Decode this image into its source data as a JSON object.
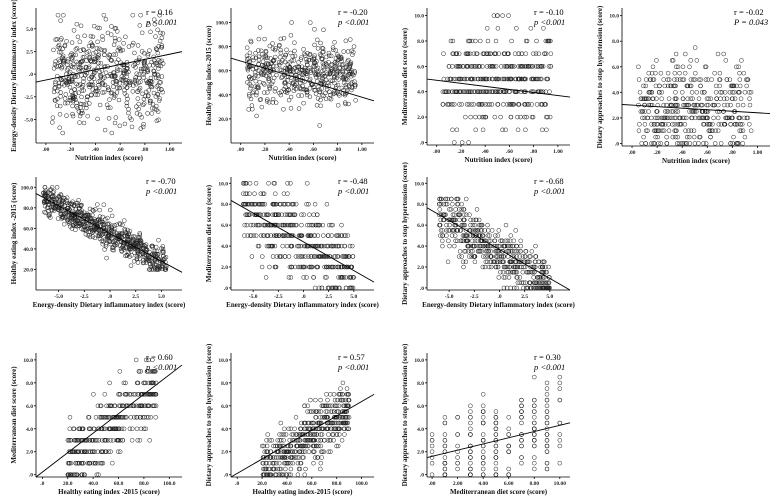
{
  "chart_data": [
    {
      "type": "scatter",
      "xlabel": "Nutrition index (score)",
      "ylabel": "Energy-density Dietary inflammatory index (score)",
      "x_ticks": [
        ".00",
        ".20",
        ".40",
        ".60",
        ".80",
        "1.00"
      ],
      "y_ticks": [
        "-5.0",
        "-2.5",
        ".0",
        "2.5",
        "5.0"
      ],
      "xlim": [
        -0.08,
        1.1
      ],
      "ylim": [
        -7.6,
        7.3
      ],
      "x_range": [
        0.05,
        0.95
      ],
      "y_range": [
        -6.5,
        6.5
      ],
      "y_mid": -0.1,
      "y_spread": 2.6,
      "slope": 2.85,
      "intercept": -0.65,
      "n": 560,
      "stat_r": "r = 0.16",
      "stat_p": "p <0.001"
    },
    {
      "type": "scatter",
      "xlabel": "Nutrition index (score)",
      "ylabel": "Healthy eating index-2015 (score)",
      "x_ticks": [
        ".00",
        ".20",
        ".40",
        ".60",
        ".80",
        "1.00"
      ],
      "y_ticks": [
        "20.0",
        "40.0",
        "60.0",
        "80.0",
        "100.0"
      ],
      "xlim": [
        -0.08,
        1.1
      ],
      "ylim": [
        0,
        112
      ],
      "x_range": [
        0.05,
        0.95
      ],
      "y_range": [
        10,
        100
      ],
      "y_mid": 58,
      "y_spread": 13,
      "slope": -30,
      "intercept": 68,
      "n": 520,
      "stat_r": "r = -0.20",
      "stat_p": "p <0.001"
    },
    {
      "type": "scatter",
      "xlabel": "Nutrition index (score)",
      "ylabel": "Mediterranean diet score (score)",
      "x_ticks": [
        ".00",
        ".20",
        ".40",
        ".60",
        ".80",
        "1.00"
      ],
      "y_ticks": [
        ".0",
        "2.0",
        "4.0",
        "6.0",
        "8.0",
        "10.0"
      ],
      "xlim": [
        -0.08,
        1.1
      ],
      "ylim": [
        -0.2,
        10.6
      ],
      "x_range": [
        0.05,
        0.95
      ],
      "y_range": [
        0,
        10
      ],
      "y_mid": 4.8,
      "y_spread": 1.9,
      "y_step": 1,
      "slope": -1.2,
      "intercept": 4.9,
      "n": 420,
      "stat_r": "r = -0.10",
      "stat_p": "p <0.001"
    },
    {
      "type": "scatter",
      "xlabel": "Nutrition index (score)",
      "ylabel": "Dietary approaches to stop hypertension (score)",
      "x_ticks": [
        ".00",
        ".20",
        ".40",
        ".60",
        ".80",
        "1.00"
      ],
      "y_ticks": [
        ".0",
        "2.0",
        "4.0",
        "6.0",
        "8.0",
        "10.0"
      ],
      "xlim": [
        -0.08,
        1.1
      ],
      "ylim": [
        -0.2,
        10.6
      ],
      "x_range": [
        0.05,
        0.95
      ],
      "y_range": [
        0,
        8.5
      ],
      "y_mid": 3.0,
      "y_spread": 1.8,
      "y_step": 0.5,
      "slope": -0.6,
      "intercept": 3.0,
      "n": 420,
      "stat_r": "r = -0.02",
      "stat_p": "P = 0.043"
    },
    {
      "type": "scatter",
      "xlabel": "Energy-density Dietary inflammatory index (score)",
      "ylabel": "Healthy eating index -2015 (score)",
      "x_ticks": [
        "-5.0",
        "-2.5",
        ".0",
        "2.5",
        "5.0"
      ],
      "y_ticks": [
        "20.0",
        "40.0",
        "60.0",
        "80.0",
        "100.0"
      ],
      "xlim": [
        -7.2,
        7.0
      ],
      "ylim": [
        0,
        110
      ],
      "x_range": [
        -6.5,
        5.5
      ],
      "y_range": [
        20,
        100
      ],
      "y_mid": 56,
      "y_spread": 8,
      "slope": -5.4,
      "intercept": 55,
      "n": 650,
      "correlated": true,
      "stat_r": "r = -0.70",
      "stat_p": "p <0.001"
    },
    {
      "type": "scatter",
      "xlabel": "Energy-density Dietary inflammatory index (score)",
      "ylabel": "Mediterranean diet score (score)",
      "x_ticks": [
        "-5.0",
        "-2.5",
        ".0",
        "2.5",
        "5.0"
      ],
      "y_ticks": [
        ".0",
        "2.0",
        "4.0",
        "6.0",
        "8.0",
        "10.0"
      ],
      "xlim": [
        -7.2,
        7.0
      ],
      "ylim": [
        -0.2,
        10.6
      ],
      "x_range": [
        -6.0,
        5.0
      ],
      "y_range": [
        0,
        10
      ],
      "y_mid": 4.8,
      "y_spread": 1.8,
      "y_step": 1,
      "slope": -0.55,
      "intercept": 4.4,
      "n": 460,
      "correlated": true,
      "stat_r": "r = -0.48",
      "stat_p": "p <0.001"
    },
    {
      "type": "scatter",
      "xlabel": "Energy-density Dietary inflammatory index (score)",
      "ylabel": "Dietary approaches to stop hypertension (score)",
      "x_ticks": [
        "-5.0",
        "-2.5",
        ".0",
        "2.5",
        "5.0"
      ],
      "y_ticks": [
        ".0",
        "2.0",
        "4.0",
        "6.0",
        "8.0",
        "10.0"
      ],
      "xlim": [
        -7.2,
        7.0
      ],
      "ylim": [
        -0.2,
        10.6
      ],
      "x_range": [
        -6.0,
        5.0
      ],
      "y_range": [
        0,
        8.5
      ],
      "y_mid": 3.5,
      "y_spread": 1.3,
      "y_step": 0.5,
      "slope": -0.62,
      "intercept": 3.2,
      "n": 520,
      "correlated": true,
      "stat_r": "r = -0.68",
      "stat_p": "p <0.001"
    },
    {
      "type": "scatter",
      "xlabel": "Healthy eating index -2015 (score)",
      "ylabel": "Mediterranean diet score (score)",
      "x_ticks": [
        ".0",
        "20.0",
        "40.0",
        "60.0",
        "80.0",
        "100.0"
      ],
      "y_ticks": [
        ".0",
        "2.0",
        "4.0",
        "6.0",
        "8.0",
        "10.0"
      ],
      "xlim": [
        -5,
        110
      ],
      "ylim": [
        -0.2,
        10.6
      ],
      "x_range": [
        20,
        90
      ],
      "y_range": [
        0,
        10
      ],
      "y_mid": 4.5,
      "y_spread": 1.5,
      "y_step": 1,
      "slope": 0.095,
      "intercept": -0.9,
      "n": 360,
      "correlated": true,
      "stat_r": "r = 0.60",
      "stat_p": "p <0.001"
    },
    {
      "type": "scatter",
      "xlabel": "Healthy eating index-2015 (score)",
      "ylabel": "Dietary approaches to stop hypertension (score)",
      "x_ticks": [
        ".0",
        "20.0",
        "40.0",
        "60.0",
        "80.0",
        "100.0"
      ],
      "y_ticks": [
        ".0",
        "2.0",
        "4.0",
        "6.0",
        "8.0",
        "10.0"
      ],
      "xlim": [
        -5,
        110
      ],
      "ylim": [
        -0.2,
        10.6
      ],
      "x_range": [
        20,
        90
      ],
      "y_range": [
        0,
        8.5
      ],
      "y_mid": 3.0,
      "y_spread": 1.2,
      "y_step": 0.5,
      "slope": 0.07,
      "intercept": -0.7,
      "n": 480,
      "correlated": true,
      "stat_r": "r = 0.57",
      "stat_p": "p <0.001"
    },
    {
      "type": "scatter",
      "xlabel": "Mediterranean diet score (score)",
      "ylabel": "Dietary approaches to stop hypertension (score)",
      "x_ticks": [
        ".00",
        "2.00",
        "4.00",
        "6.00",
        "8.00",
        "10.00"
      ],
      "y_ticks": [
        ".0",
        "2.0",
        "4.0",
        "6.0",
        "8.0",
        "10.0"
      ],
      "xlim": [
        -0.4,
        10.8
      ],
      "ylim": [
        -0.2,
        10.6
      ],
      "x_range": [
        0,
        10
      ],
      "x_step": 1,
      "y_range": [
        0,
        8.5
      ],
      "y_mid": 3.5,
      "y_spread": 2.0,
      "y_step": 0.5,
      "slope": 0.27,
      "intercept": 1.6,
      "n": 240,
      "correlated": true,
      "stat_r": "r = 0.30",
      "stat_p": "p <0.001"
    }
  ]
}
